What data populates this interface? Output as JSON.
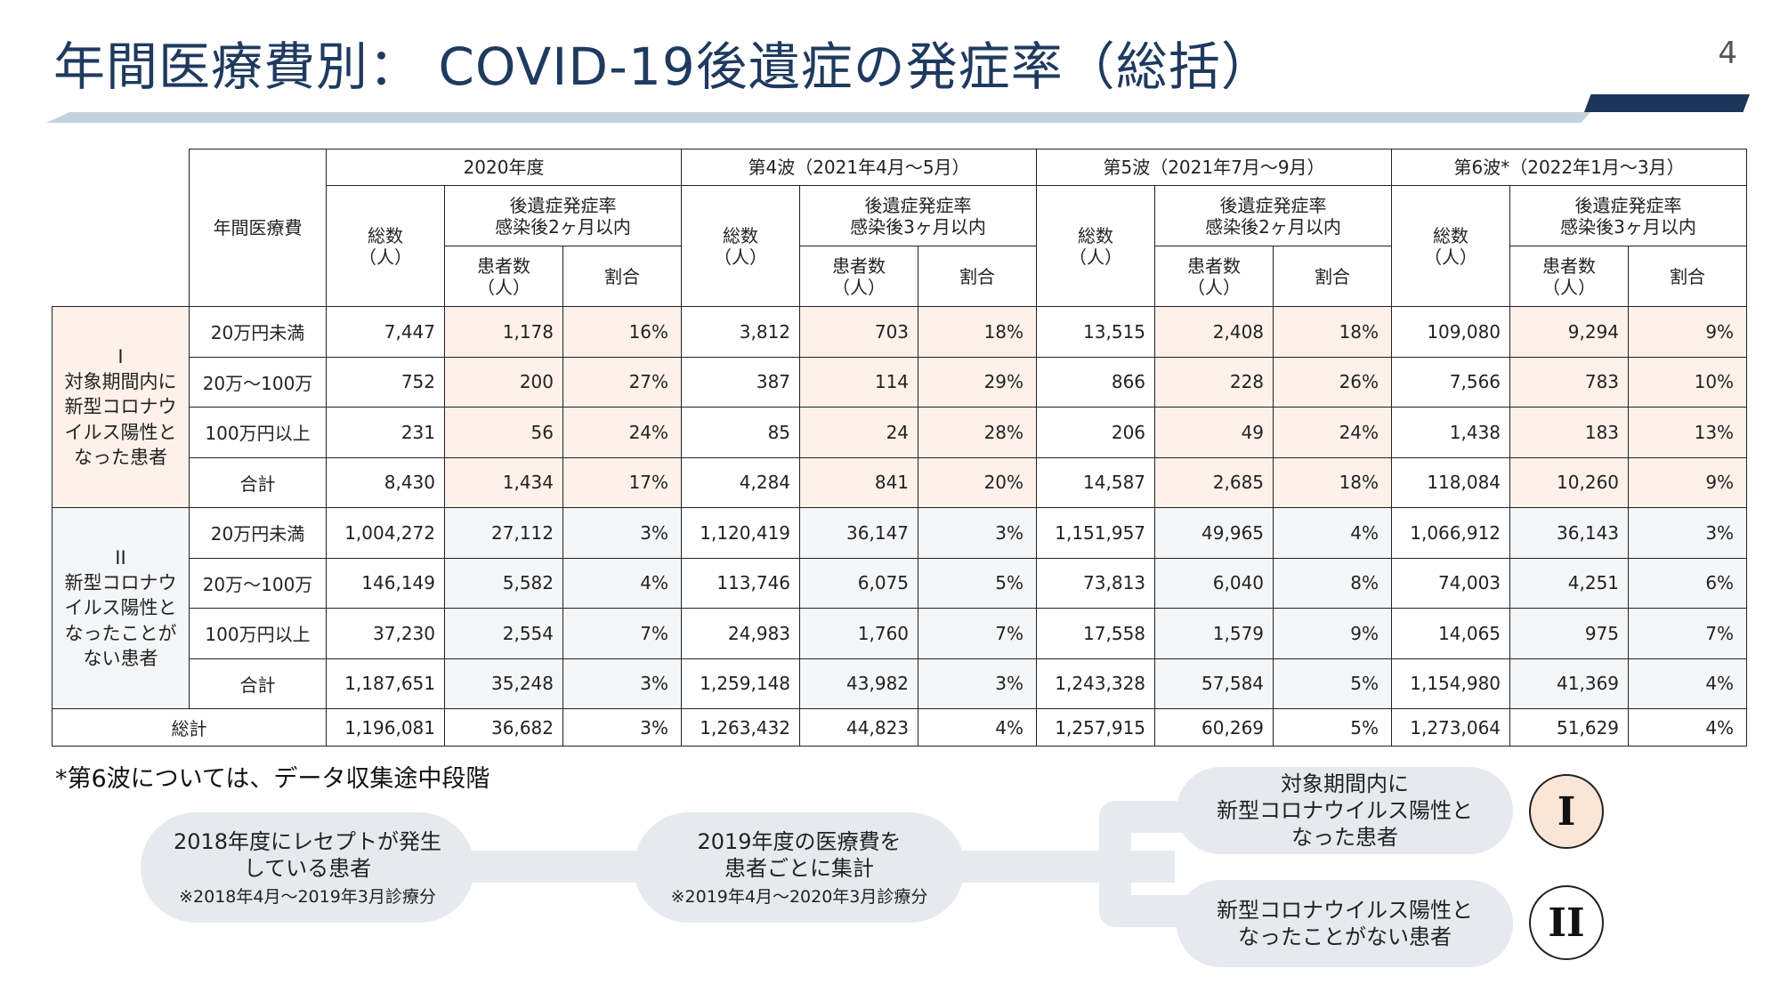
{
  "page": {
    "title": "年間医療費別： COVID-19後遺症の発症率（総括）",
    "number": "4"
  },
  "table": {
    "header": {
      "cost_label": "年間医療費",
      "total_label": "総数\n（人）",
      "rate_label": "割合",
      "patients_label": "患者数\n（人）",
      "periods": [
        {
          "name": "2020年度",
          "rate_header": "後遺症発症率\n感染後2ヶ月以内"
        },
        {
          "name": "第4波（2021年4月～5月）",
          "rate_header": "後遺症発症率\n感染後3ヶ月以内"
        },
        {
          "name": "第5波（2021年7月～9月）",
          "rate_header": "後遺症発症率\n感染後2ヶ月以内"
        },
        {
          "name": "第6波*（2022年1月～3月）",
          "rate_header": "後遺症発症率\n感染後3ヶ月以内"
        }
      ]
    },
    "groups": [
      {
        "label": "I\n対象期間内に\n新型コロナウ\nイルス陽性と\nなった患者",
        "rows": [
          {
            "category": "20万円未満",
            "cells": [
              "7,447",
              "1,178",
              "16%",
              "3,812",
              "703",
              "18%",
              "13,515",
              "2,408",
              "18%",
              "109,080",
              "9,294",
              "9%"
            ]
          },
          {
            "category": "20万～100万",
            "cells": [
              "752",
              "200",
              "27%",
              "387",
              "114",
              "29%",
              "866",
              "228",
              "26%",
              "7,566",
              "783",
              "10%"
            ]
          },
          {
            "category": "100万円以上",
            "cells": [
              "231",
              "56",
              "24%",
              "85",
              "24",
              "28%",
              "206",
              "49",
              "24%",
              "1,438",
              "183",
              "13%"
            ]
          },
          {
            "category": "合計",
            "cells": [
              "8,430",
              "1,434",
              "17%",
              "4,284",
              "841",
              "20%",
              "14,587",
              "2,685",
              "18%",
              "118,084",
              "10,260",
              "9%"
            ]
          }
        ]
      },
      {
        "label": "II\n新型コロナウ\nイルス陽性と\nなったことが\nない患者",
        "rows": [
          {
            "category": "20万円未満",
            "cells": [
              "1,004,272",
              "27,112",
              "3%",
              "1,120,419",
              "36,147",
              "3%",
              "1,151,957",
              "49,965",
              "4%",
              "1,066,912",
              "36,143",
              "3%"
            ]
          },
          {
            "category": "20万～100万",
            "cells": [
              "146,149",
              "5,582",
              "4%",
              "113,746",
              "6,075",
              "5%",
              "73,813",
              "6,040",
              "8%",
              "74,003",
              "4,251",
              "6%"
            ]
          },
          {
            "category": "100万円以上",
            "cells": [
              "37,230",
              "2,554",
              "7%",
              "24,983",
              "1,760",
              "7%",
              "17,558",
              "1,579",
              "9%",
              "14,065",
              "975",
              "7%"
            ]
          },
          {
            "category": "合計",
            "cells": [
              "1,187,651",
              "35,248",
              "3%",
              "1,259,148",
              "43,982",
              "3%",
              "1,243,328",
              "57,584",
              "5%",
              "1,154,980",
              "41,369",
              "4%"
            ]
          }
        ]
      }
    ],
    "grand_total": {
      "label": "総計",
      "cells": [
        "1,196,081",
        "36,682",
        "3%",
        "1,263,432",
        "44,823",
        "4%",
        "1,257,915",
        "60,269",
        "5%",
        "1,273,064",
        "51,629",
        "4%"
      ]
    }
  },
  "footnote": "*第6波については、データ収集途中段階",
  "flow": {
    "step1": {
      "text": "2018年度にレセプトが発生\nしている患者",
      "note": "※2018年4月～2019年3月診療分"
    },
    "step2": {
      "text": "2019年度の医療費を\n患者ごとに集計",
      "note": "※2019年4月～2020年3月診療分"
    },
    "branch1": {
      "text": "対象期間内に\n新型コロナウイルス陽性と\nなった患者",
      "badge": "I"
    },
    "branch2": {
      "text": "新型コロナウイルス陽性と\nなったことがない患者",
      "badge": "II"
    }
  },
  "colors": {
    "title": "#1f3a5f",
    "accent": "#1c3559",
    "group1_fill": "#fdf1ea",
    "group2_fill": "#f5f6f8",
    "pill": "#e6eaef"
  }
}
